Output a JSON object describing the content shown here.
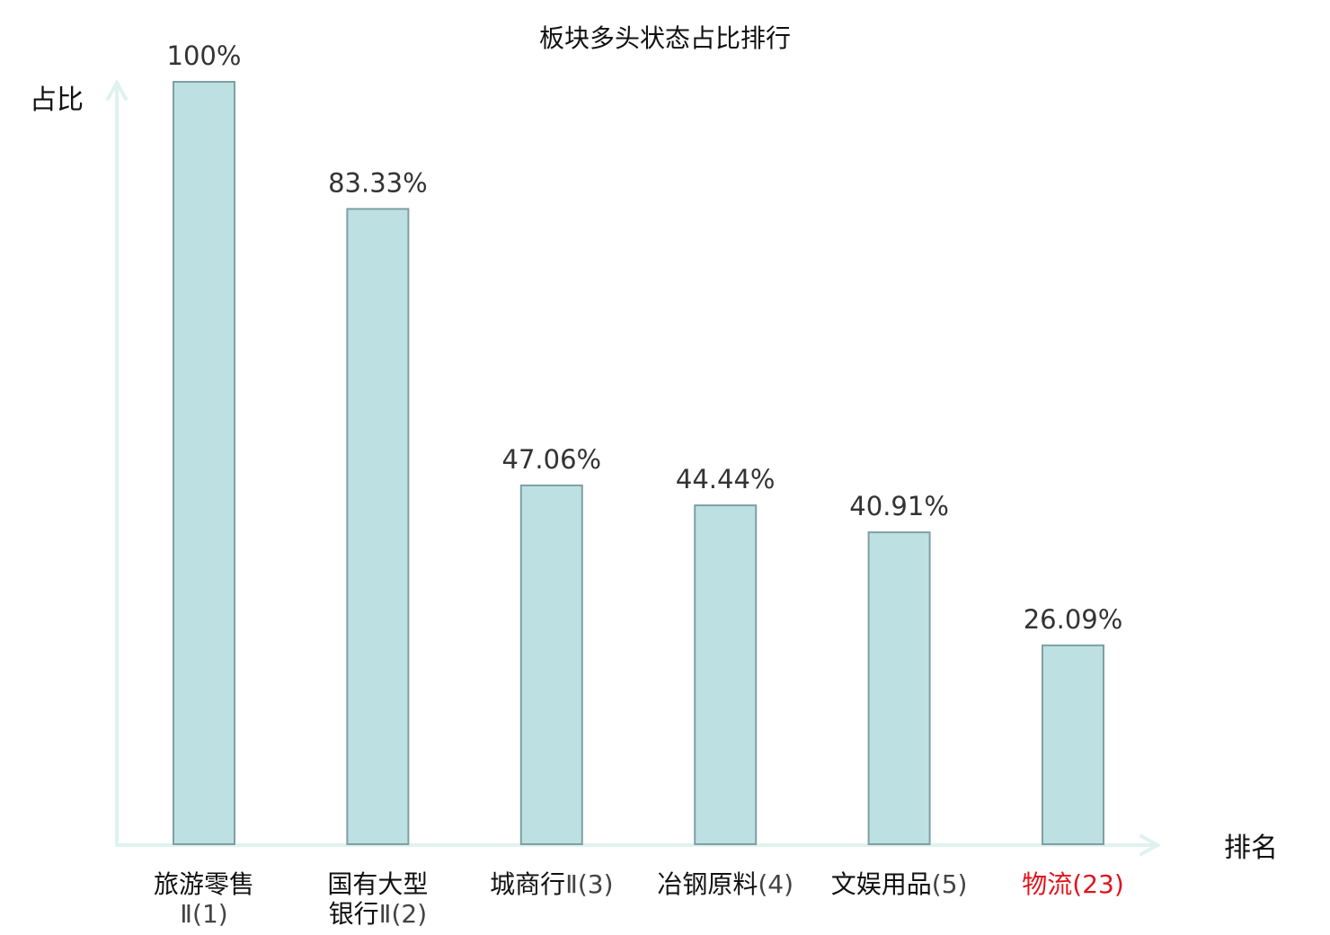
{
  "chart_data": {
    "type": "bar",
    "title": "板块多头状态占比排行",
    "ylabel": "占比",
    "xlabel": "排名",
    "ylim": [
      0,
      100
    ],
    "grid": false,
    "categories": [
      {
        "lines": [
          {
            "name": "旅游零售",
            "rank": ""
          },
          {
            "name": "",
            "rank": "Ⅱ(1)"
          }
        ],
        "highlight": false
      },
      {
        "lines": [
          {
            "name": "国有大型",
            "rank": ""
          },
          {
            "name": "银行",
            "rank": "Ⅱ(2)"
          }
        ],
        "highlight": false
      },
      {
        "lines": [
          {
            "name": "城商行",
            "rank": "Ⅱ(3)"
          }
        ],
        "highlight": false
      },
      {
        "lines": [
          {
            "name": "冶钢原料",
            "rank": "(4)"
          }
        ],
        "highlight": false
      },
      {
        "lines": [
          {
            "name": "文娱用品",
            "rank": "(5)"
          }
        ],
        "highlight": false
      },
      {
        "lines": [
          {
            "name": "物流",
            "rank": "(23)"
          }
        ],
        "highlight": true
      }
    ],
    "values": [
      100,
      83.33,
      47.06,
      44.44,
      40.91,
      26.09
    ],
    "value_labels": [
      "100%",
      "83.33%",
      "47.06%",
      "44.44%",
      "40.91%",
      "26.09%"
    ],
    "colors": {
      "bar_fill": "#bde0e2",
      "bar_stroke": "#7f9fa3",
      "axis": "#e0f2ef",
      "highlight_text": "#e0141e"
    }
  }
}
